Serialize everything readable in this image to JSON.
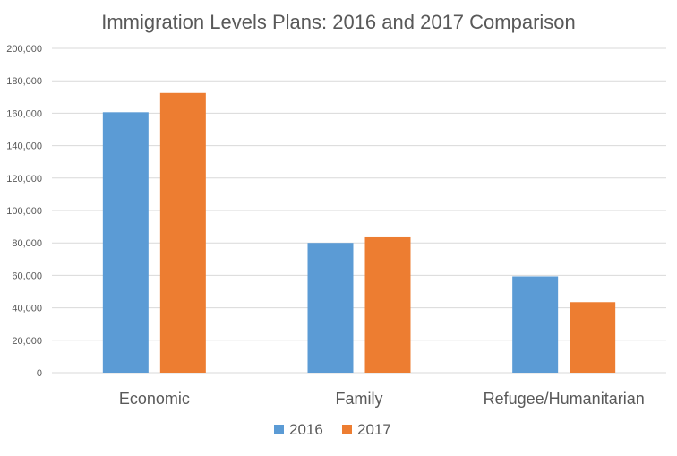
{
  "chart_data": {
    "type": "bar",
    "title": "Immigration Levels Plans: 2016 and 2017 Comparison",
    "categories": [
      "Economic",
      "Family",
      "Refugee/Humanitarian"
    ],
    "series": [
      {
        "name": "2016",
        "values": [
          160600,
          80000,
          59400
        ],
        "color": "#5b9bd5"
      },
      {
        "name": "2017",
        "values": [
          172500,
          84000,
          43500
        ],
        "color": "#ed7d31"
      }
    ],
    "y_ticks": [
      "0",
      "20,000",
      "40,000",
      "60,000",
      "80,000",
      "100,000",
      "120,000",
      "140,000",
      "160,000",
      "180,000",
      "200,000"
    ],
    "ylim": [
      0,
      200000
    ],
    "grid": true,
    "legend_position": "bottom"
  }
}
